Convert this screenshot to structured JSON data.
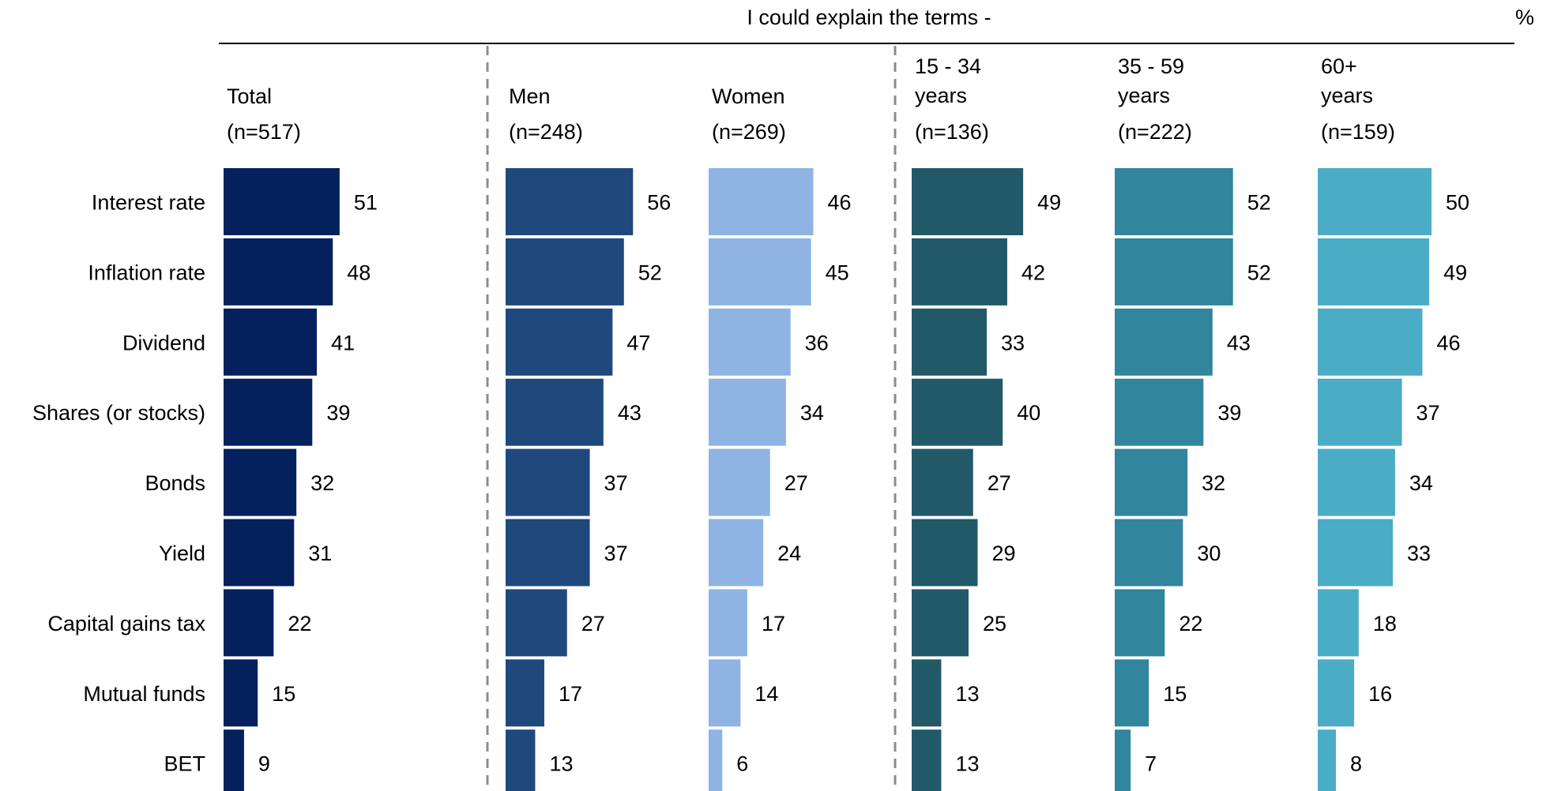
{
  "chart_data": {
    "type": "bar",
    "orientation": "horizontal",
    "title": "I could explain the terms -",
    "unit_label": "%",
    "categories": [
      "Interest rate",
      "Inflation rate",
      "Dividend",
      "Shares (or stocks)",
      "Bonds",
      "Yield",
      "Capital gains tax",
      "Mutual funds",
      "BET"
    ],
    "series": [
      {
        "name": "Total",
        "n": "(n=517)",
        "color": "#04215E",
        "values": [
          51,
          48,
          41,
          39,
          32,
          31,
          22,
          15,
          9
        ]
      },
      {
        "name": "Men",
        "n": "(n=248)",
        "color": "#1F497D",
        "values": [
          56,
          52,
          47,
          43,
          37,
          37,
          27,
          17,
          13
        ]
      },
      {
        "name": "Women",
        "n": "(n=269)",
        "color": "#8FB4E3",
        "values": [
          46,
          45,
          36,
          34,
          27,
          24,
          17,
          14,
          6
        ]
      },
      {
        "name": "15 - 34 years",
        "n": "(n=136)",
        "color": "#215968",
        "values": [
          49,
          42,
          33,
          40,
          27,
          29,
          25,
          13,
          13
        ]
      },
      {
        "name": "35 - 59 years",
        "n": "(n=222)",
        "color": "#31859C",
        "values": [
          52,
          52,
          43,
          39,
          32,
          30,
          22,
          15,
          7
        ]
      },
      {
        "name": "60+ years",
        "n": "(n=159)",
        "color": "#4BACC6",
        "values": [
          50,
          49,
          46,
          37,
          34,
          33,
          18,
          16,
          8
        ]
      }
    ],
    "header_lines": [
      [
        "Total"
      ],
      [
        "Men"
      ],
      [
        "Women"
      ],
      [
        "15 - 34",
        "years"
      ],
      [
        "35 - 59",
        "years"
      ],
      [
        "60+",
        "years"
      ]
    ],
    "legend": "none",
    "grid": false
  }
}
